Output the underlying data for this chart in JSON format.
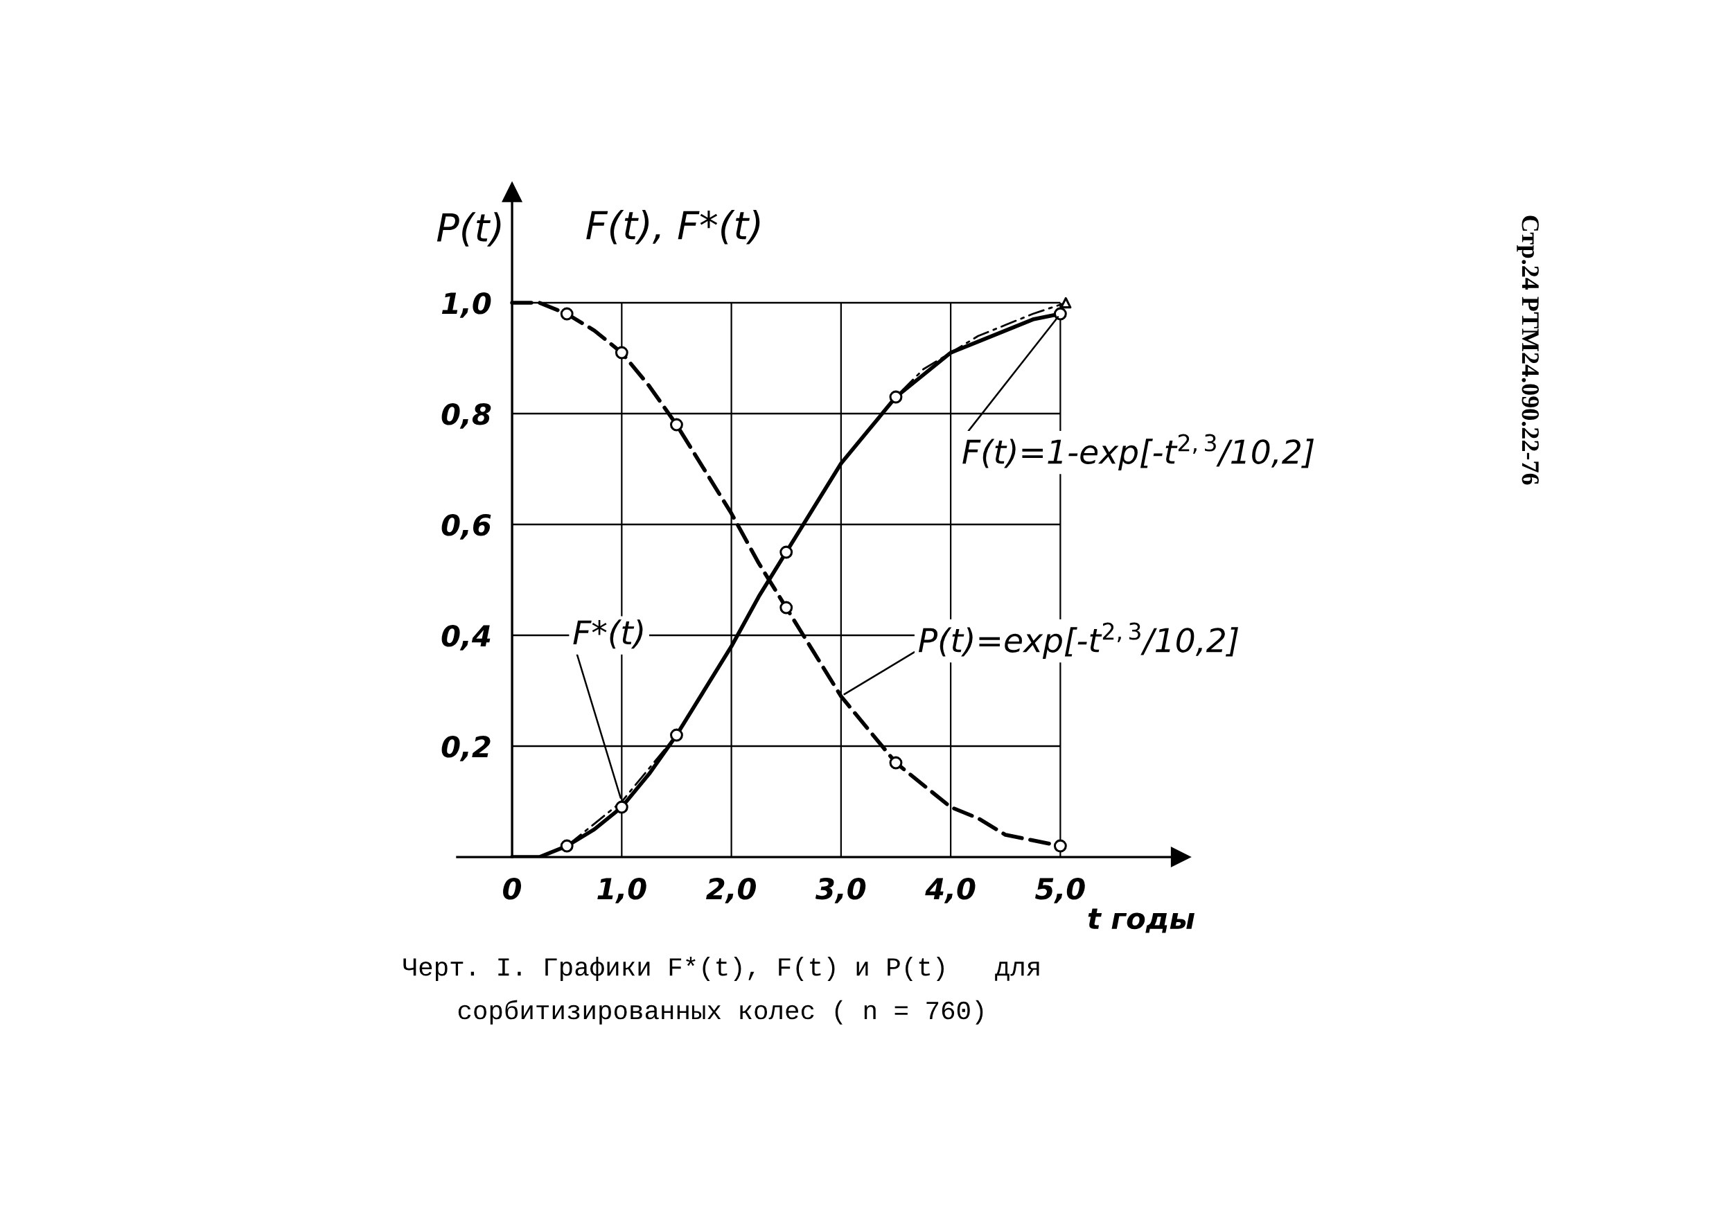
{
  "chart_data": {
    "type": "line",
    "xlabel": "t годы",
    "ylabel": "F(t), F*(t)",
    "annotations": [
      "P(t)",
      "Стр.24 РТМ24.090.22-76",
      "Черт. I. Графики F*(t), F(t) и P(t)   для\nсорбитизированных колес ( n = 760)"
    ],
    "xlim": [
      -0.5,
      6.1
    ],
    "ylim": [
      0,
      1.2
    ],
    "xticks": [
      {
        "value": 0,
        "label": "0"
      },
      {
        "value": 1,
        "label": "1,0"
      },
      {
        "value": 2,
        "label": "2,0"
      },
      {
        "value": 3,
        "label": "3,0"
      },
      {
        "value": 4,
        "label": "4,0"
      },
      {
        "value": 5,
        "label": "5,0"
      }
    ],
    "yticks": [
      {
        "value": 0.2,
        "label": "0,2"
      },
      {
        "value": 0.4,
        "label": "0,4"
      },
      {
        "value": 0.6,
        "label": "0,6"
      },
      {
        "value": 0.8,
        "label": "0,8"
      },
      {
        "value": 1,
        "label": "1,0"
      }
    ],
    "grid": true,
    "series": [
      {
        "name": "F(t)=1-exp[-t$^{2,3}$/10,2]",
        "type": "line",
        "line_style": "solid",
        "color": "#000000",
        "x": [
          0,
          0.25,
          0.5,
          0.75,
          1.0,
          1.25,
          1.5,
          1.75,
          2.0,
          2.25,
          2.5,
          2.75,
          3.0,
          3.25,
          3.5,
          3.75,
          4.0,
          4.25,
          4.5,
          4.75,
          5.0
        ],
        "values": [
          0,
          0.0,
          0.02,
          0.05,
          0.09,
          0.15,
          0.22,
          0.3,
          0.38,
          0.47,
          0.55,
          0.63,
          0.71,
          0.77,
          0.83,
          0.87,
          0.91,
          0.93,
          0.95,
          0.97,
          0.98
        ]
      },
      {
        "name": "P(t)=exp[-t$^{2,3}$/10,2]",
        "type": "line",
        "line_style": "dashed",
        "color": "#000000",
        "x": [
          0,
          0.25,
          0.5,
          0.75,
          1.0,
          1.25,
          1.5,
          1.75,
          2.0,
          2.25,
          2.5,
          2.75,
          3.0,
          3.25,
          3.5,
          3.75,
          4.0,
          4.25,
          4.5,
          4.75,
          5.0
        ],
        "values": [
          1.0,
          1.0,
          0.98,
          0.95,
          0.91,
          0.85,
          0.78,
          0.7,
          0.62,
          0.53,
          0.45,
          0.37,
          0.29,
          0.23,
          0.17,
          0.13,
          0.09,
          0.07,
          0.04,
          0.03,
          0.02
        ]
      },
      {
        "name": "F*(t)",
        "type": "line",
        "line_style": "dashdot",
        "color": "#000000",
        "x": [
          0,
          0.25,
          0.5,
          0.75,
          1.0,
          1.25,
          1.5,
          1.75,
          2.0,
          2.25,
          2.5,
          2.75,
          3.0,
          3.25,
          3.5,
          3.75,
          4.0,
          4.25,
          4.5,
          4.75,
          5.05
        ],
        "values": [
          0,
          0.0,
          0.02,
          0.06,
          0.1,
          0.16,
          0.22,
          0.3,
          0.38,
          0.47,
          0.55,
          0.63,
          0.71,
          0.77,
          0.83,
          0.88,
          0.91,
          0.94,
          0.96,
          0.98,
          1.0
        ]
      },
      {
        "type": "scatter",
        "marker": "circle",
        "color": "#000000",
        "x": [
          0.5,
          1.0,
          1.5,
          2.5,
          3.5,
          5.0
        ],
        "values": [
          0.02,
          0.09,
          0.22,
          0.55,
          0.83,
          0.98
        ]
      },
      {
        "type": "scatter",
        "marker": "circle",
        "color": "#000000",
        "x": [
          0.5,
          1.0,
          1.5,
          2.5,
          3.5,
          5.0
        ],
        "values": [
          0.98,
          0.91,
          0.78,
          0.45,
          0.17,
          0.02
        ]
      },
      {
        "type": "scatter",
        "marker": "triangle",
        "color": "#000000",
        "x": [
          5.05
        ],
        "values": [
          1.0
        ]
      }
    ]
  }
}
